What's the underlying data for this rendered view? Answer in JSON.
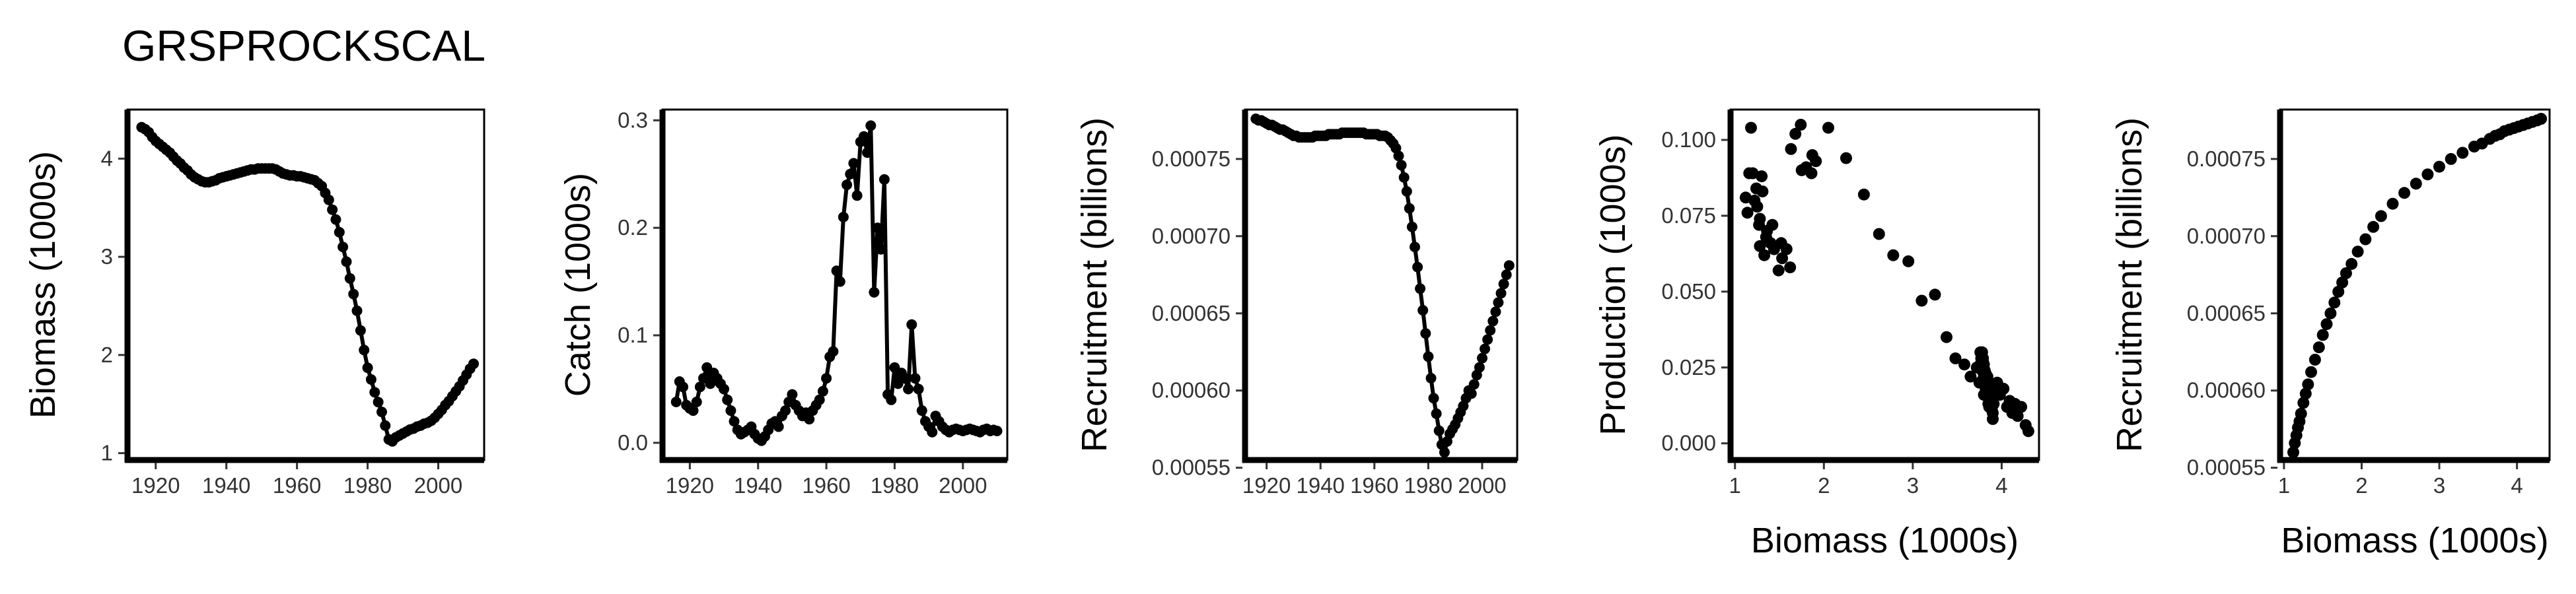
{
  "title": "GRSPROCKSCAL",
  "colors": {
    "ink": "#000000"
  },
  "chart_data": [
    {
      "id": "biomass",
      "type": "line",
      "ylabel": "Biomass (1000s)",
      "xlabel": "",
      "xlim": [
        1912,
        2013
      ],
      "ylim": [
        0.93,
        4.5
      ],
      "xticks": [
        1920,
        1940,
        1960,
        1980,
        2000
      ],
      "yticks": [
        1,
        2,
        3,
        4
      ],
      "x": [
        1916,
        1917,
        1918,
        1919,
        1920,
        1921,
        1922,
        1923,
        1924,
        1925,
        1926,
        1927,
        1928,
        1929,
        1930,
        1931,
        1932,
        1933,
        1934,
        1935,
        1936,
        1937,
        1938,
        1939,
        1940,
        1941,
        1942,
        1943,
        1944,
        1945,
        1946,
        1947,
        1948,
        1949,
        1950,
        1951,
        1952,
        1953,
        1954,
        1955,
        1956,
        1957,
        1958,
        1959,
        1960,
        1961,
        1962,
        1963,
        1964,
        1965,
        1966,
        1967,
        1968,
        1969,
        1970,
        1971,
        1972,
        1973,
        1974,
        1975,
        1976,
        1977,
        1978,
        1979,
        1980,
        1981,
        1982,
        1983,
        1984,
        1985,
        1986,
        1987,
        1988,
        1989,
        1990,
        1991,
        1992,
        1993,
        1994,
        1995,
        1996,
        1997,
        1998,
        1999,
        2000,
        2001,
        2002,
        2003,
        2004,
        2005,
        2006,
        2007,
        2008,
        2009,
        2010
      ],
      "y": [
        4.32,
        4.3,
        4.27,
        4.22,
        4.18,
        4.15,
        4.12,
        4.09,
        4.06,
        4.02,
        3.98,
        3.95,
        3.91,
        3.88,
        3.84,
        3.81,
        3.79,
        3.77,
        3.76,
        3.76,
        3.77,
        3.78,
        3.8,
        3.81,
        3.82,
        3.83,
        3.84,
        3.85,
        3.86,
        3.87,
        3.88,
        3.89,
        3.89,
        3.9,
        3.9,
        3.9,
        3.9,
        3.9,
        3.89,
        3.87,
        3.85,
        3.84,
        3.83,
        3.83,
        3.82,
        3.82,
        3.81,
        3.8,
        3.79,
        3.78,
        3.75,
        3.72,
        3.65,
        3.58,
        3.48,
        3.38,
        3.25,
        3.1,
        2.95,
        2.78,
        2.62,
        2.45,
        2.25,
        2.05,
        1.87,
        1.75,
        1.62,
        1.52,
        1.42,
        1.28,
        1.14,
        1.12,
        1.16,
        1.18,
        1.2,
        1.22,
        1.24,
        1.25,
        1.27,
        1.28,
        1.3,
        1.31,
        1.33,
        1.36,
        1.4,
        1.44,
        1.49,
        1.53,
        1.58,
        1.63,
        1.68,
        1.74,
        1.8,
        1.86,
        1.91
      ]
    },
    {
      "id": "catch",
      "type": "line",
      "ylabel": "Catch (1000s)",
      "xlabel": "",
      "xlim": [
        1912,
        2013
      ],
      "ylim": [
        -0.016,
        0.31
      ],
      "xticks": [
        1920,
        1940,
        1960,
        1980,
        2000
      ],
      "yticks": [
        0.0,
        0.1,
        0.2,
        0.3
      ],
      "x": [
        1916,
        1917,
        1918,
        1919,
        1920,
        1921,
        1922,
        1923,
        1924,
        1925,
        1926,
        1927,
        1928,
        1929,
        1930,
        1931,
        1932,
        1933,
        1934,
        1935,
        1936,
        1937,
        1938,
        1939,
        1940,
        1941,
        1942,
        1943,
        1944,
        1945,
        1946,
        1947,
        1948,
        1949,
        1950,
        1951,
        1952,
        1953,
        1954,
        1955,
        1956,
        1957,
        1958,
        1959,
        1960,
        1961,
        1962,
        1963,
        1964,
        1965,
        1966,
        1967,
        1968,
        1969,
        1970,
        1971,
        1972,
        1973,
        1974,
        1975,
        1976,
        1977,
        1978,
        1979,
        1980,
        1981,
        1982,
        1983,
        1984,
        1985,
        1986,
        1987,
        1988,
        1989,
        1990,
        1991,
        1992,
        1993,
        1994,
        1995,
        1996,
        1997,
        1998,
        1999,
        2000,
        2001,
        2002,
        2003,
        2004,
        2005,
        2006,
        2007,
        2008,
        2009,
        2010
      ],
      "y": [
        0.038,
        0.057,
        0.052,
        0.035,
        0.032,
        0.03,
        0.038,
        0.052,
        0.06,
        0.07,
        0.055,
        0.065,
        0.06,
        0.055,
        0.05,
        0.04,
        0.03,
        0.02,
        0.012,
        0.008,
        0.01,
        0.012,
        0.015,
        0.008,
        0.004,
        0.002,
        0.006,
        0.012,
        0.018,
        0.02,
        0.015,
        0.025,
        0.03,
        0.038,
        0.045,
        0.035,
        0.03,
        0.025,
        0.028,
        0.022,
        0.03,
        0.035,
        0.04,
        0.048,
        0.06,
        0.08,
        0.085,
        0.16,
        0.15,
        0.21,
        0.24,
        0.25,
        0.26,
        0.23,
        0.28,
        0.285,
        0.27,
        0.295,
        0.14,
        0.2,
        0.18,
        0.245,
        0.045,
        0.04,
        0.07,
        0.055,
        0.065,
        0.06,
        0.05,
        0.11,
        0.06,
        0.05,
        0.03,
        0.02,
        0.015,
        0.01,
        0.025,
        0.02,
        0.015,
        0.012,
        0.01,
        0.012,
        0.013,
        0.012,
        0.011,
        0.012,
        0.013,
        0.012,
        0.011,
        0.01,
        0.012,
        0.013,
        0.011,
        0.012,
        0.011
      ]
    },
    {
      "id": "recruitment-time",
      "type": "line",
      "ylabel": "Recruitment (billions)",
      "xlabel": "",
      "xlim": [
        1912,
        2013
      ],
      "ylim": [
        0.000555,
        0.000782
      ],
      "xticks": [
        1920,
        1940,
        1960,
        1980,
        2000
      ],
      "yticks": [
        0.00055,
        0.0006,
        0.00065,
        0.0007,
        0.00075
      ],
      "x": [
        1916,
        1917,
        1918,
        1919,
        1920,
        1921,
        1922,
        1923,
        1924,
        1925,
        1926,
        1927,
        1928,
        1929,
        1930,
        1931,
        1932,
        1933,
        1934,
        1935,
        1936,
        1937,
        1938,
        1939,
        1940,
        1941,
        1942,
        1943,
        1944,
        1945,
        1946,
        1947,
        1948,
        1949,
        1950,
        1951,
        1952,
        1953,
        1954,
        1955,
        1956,
        1957,
        1958,
        1959,
        1960,
        1961,
        1962,
        1963,
        1964,
        1965,
        1966,
        1967,
        1968,
        1969,
        1970,
        1971,
        1972,
        1973,
        1974,
        1975,
        1976,
        1977,
        1978,
        1979,
        1980,
        1981,
        1982,
        1983,
        1984,
        1985,
        1986,
        1987,
        1988,
        1989,
        1990,
        1991,
        1992,
        1993,
        1994,
        1995,
        1996,
        1997,
        1998,
        1999,
        2000,
        2001,
        2002,
        2003,
        2004,
        2005,
        2006,
        2007,
        2008,
        2009,
        2010
      ],
      "y": [
        0.000776,
        0.000775,
        0.000775,
        0.000774,
        0.000773,
        0.000772,
        0.000772,
        0.000771,
        0.00077,
        0.000769,
        0.000769,
        0.000768,
        0.000767,
        0.000766,
        0.000765,
        0.000765,
        0.000764,
        0.000764,
        0.000764,
        0.000764,
        0.000764,
        0.000764,
        0.000765,
        0.000765,
        0.000765,
        0.000765,
        0.000765,
        0.000766,
        0.000766,
        0.000766,
        0.000766,
        0.000766,
        0.000767,
        0.000767,
        0.000767,
        0.000767,
        0.000767,
        0.000767,
        0.000767,
        0.000767,
        0.000767,
        0.000766,
        0.000766,
        0.000766,
        0.000766,
        0.000766,
        0.000765,
        0.000765,
        0.000765,
        0.000764,
        0.000762,
        0.00076,
        0.000757,
        0.000752,
        0.000746,
        0.000738,
        0.000729,
        0.000718,
        0.000706,
        0.000693,
        0.00068,
        0.000666,
        0.000652,
        0.000637,
        0.000622,
        0.000608,
        0.000595,
        0.000585,
        0.000574,
        0.000565,
        0.00056,
        0.000567,
        0.000572,
        0.000575,
        0.000578,
        0.000582,
        0.000586,
        0.00059,
        0.000595,
        0.0006,
        0.000598,
        0.000604,
        0.00061,
        0.000615,
        0.000621,
        0.000627,
        0.000633,
        0.000639,
        0.000645,
        0.000651,
        0.000657,
        0.000663,
        0.000669,
        0.000675,
        0.000681
      ]
    },
    {
      "id": "production-vs-biomass",
      "type": "scatter",
      "ylabel": "Production (1000s)",
      "xlabel": "Biomass (1000s)",
      "xlim": [
        0.95,
        4.42
      ],
      "ylim": [
        -0.0055,
        0.11
      ],
      "xticks": [
        1,
        2,
        3,
        4
      ],
      "yticks": [
        0.0,
        0.025,
        0.05,
        0.075,
        0.1
      ],
      "x": [
        1.14,
        1.12,
        1.16,
        1.18,
        1.2,
        1.22,
        1.24,
        1.25,
        1.27,
        1.28,
        1.3,
        1.31,
        1.33,
        1.36,
        1.4,
        1.44,
        1.49,
        1.53,
        1.58,
        1.63,
        1.68,
        1.74,
        1.8,
        1.86,
        1.91,
        1.28,
        1.35,
        1.42,
        1.52,
        1.62,
        1.75,
        1.87,
        2.05,
        2.25,
        2.45,
        2.62,
        2.78,
        2.95,
        3.1,
        3.25,
        3.38,
        3.48,
        3.58,
        3.65,
        3.72,
        3.75,
        3.78,
        3.79,
        3.8,
        3.81,
        3.82,
        3.83,
        3.84,
        3.85,
        3.87,
        3.89,
        3.9,
        3.91,
        3.95,
        3.98,
        4.02,
        4.06,
        4.09,
        4.12,
        4.15,
        4.18,
        4.22,
        4.27,
        4.3,
        3.76,
        3.77,
        3.78,
        3.8,
        3.81,
        3.82,
        3.83,
        3.84,
        3.85,
        3.86,
        3.87,
        3.88,
        3.89,
        3.9,
        3.76,
        3.79,
        3.82,
        3.86,
        3.88,
        3.9,
        3.81,
        3.83,
        3.85,
        3.78,
        3.8
      ],
      "y": [
        0.076,
        0.081,
        0.089,
        0.104,
        0.089,
        0.08,
        0.084,
        0.078,
        0.072,
        0.065,
        0.088,
        0.083,
        0.062,
        0.07,
        0.066,
        0.064,
        0.057,
        0.061,
        0.064,
        0.097,
        0.102,
        0.105,
        0.091,
        0.089,
        0.093,
        0.074,
        0.068,
        0.072,
        0.066,
        0.058,
        0.09,
        0.095,
        0.104,
        0.094,
        0.082,
        0.069,
        0.062,
        0.06,
        0.047,
        0.049,
        0.035,
        0.028,
        0.026,
        0.022,
        0.025,
        0.02,
        0.03,
        0.028,
        0.026,
        0.024,
        0.022,
        0.018,
        0.021,
        0.016,
        0.019,
        0.015,
        0.017,
        0.013,
        0.02,
        0.016,
        0.018,
        0.012,
        0.014,
        0.01,
        0.013,
        0.009,
        0.012,
        0.006,
        0.004,
        0.026,
        0.028,
        0.024,
        0.022,
        0.02,
        0.018,
        0.016,
        0.022,
        0.015,
        0.012,
        0.019,
        0.014,
        0.011,
        0.008,
        0.03,
        0.027,
        0.023,
        0.017,
        0.014,
        0.01,
        0.021,
        0.019,
        0.013,
        0.025,
        0.016
      ]
    },
    {
      "id": "recruitment-vs-biomass",
      "type": "scatter",
      "ylabel": "Recruitment (billions)",
      "xlabel": "Biomass (1000s)",
      "xlim": [
        0.95,
        4.42
      ],
      "ylim": [
        0.000555,
        0.000782
      ],
      "xticks": [
        1,
        2,
        3,
        4
      ],
      "yticks": [
        0.00055,
        0.0006,
        0.00065,
        0.0007,
        0.00075
      ],
      "x": [
        1.12,
        1.14,
        1.16,
        1.18,
        1.2,
        1.22,
        1.25,
        1.28,
        1.31,
        1.35,
        1.4,
        1.45,
        1.5,
        1.55,
        1.6,
        1.65,
        1.7,
        1.75,
        1.8,
        1.87,
        1.95,
        2.05,
        2.15,
        2.25,
        2.4,
        2.55,
        2.7,
        2.85,
        3.0,
        3.15,
        3.3,
        3.45,
        3.55,
        3.65,
        3.72,
        3.78,
        3.84,
        3.9,
        3.96,
        4.02,
        4.08,
        4.14,
        4.2,
        4.26,
        4.31
      ],
      "y": [
        0.00056,
        0.000566,
        0.000571,
        0.000576,
        0.00058,
        0.000585,
        0.000592,
        0.000598,
        0.000604,
        0.000612,
        0.00062,
        0.000628,
        0.000636,
        0.000643,
        0.00065,
        0.000657,
        0.000664,
        0.00067,
        0.000676,
        0.000682,
        0.00069,
        0.000698,
        0.000706,
        0.000713,
        0.000721,
        0.000728,
        0.000734,
        0.00074,
        0.000745,
        0.00075,
        0.000754,
        0.000758,
        0.00076,
        0.000763,
        0.000765,
        0.000766,
        0.000768,
        0.000769,
        0.00077,
        0.000771,
        0.000772,
        0.000773,
        0.000774,
        0.000775,
        0.000776
      ]
    }
  ]
}
